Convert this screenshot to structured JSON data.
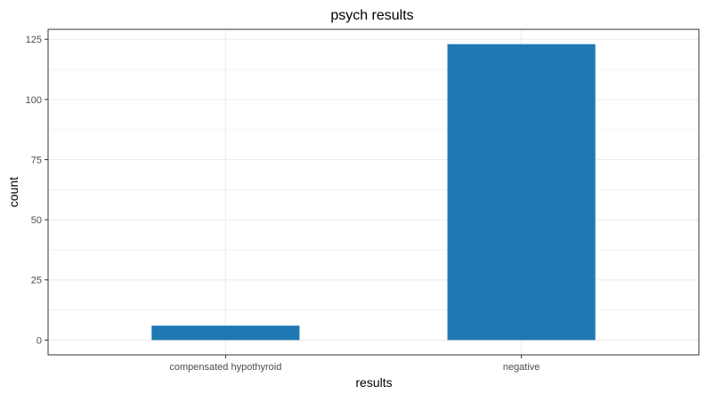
{
  "chart_data": {
    "type": "bar",
    "title": "psych results",
    "xlabel": "results",
    "ylabel": "count",
    "categories": [
      "compensated hypothyroid",
      "negative"
    ],
    "values": [
      6,
      123
    ],
    "ylim": [
      -6.15,
      129.15
    ],
    "yticks": [
      0,
      25,
      50,
      75,
      100,
      125
    ],
    "ytick_labels": [
      "0",
      "25",
      "50",
      "75",
      "100",
      "125"
    ],
    "bar_color": "#1f78b4",
    "grid": true,
    "legend": "none"
  }
}
